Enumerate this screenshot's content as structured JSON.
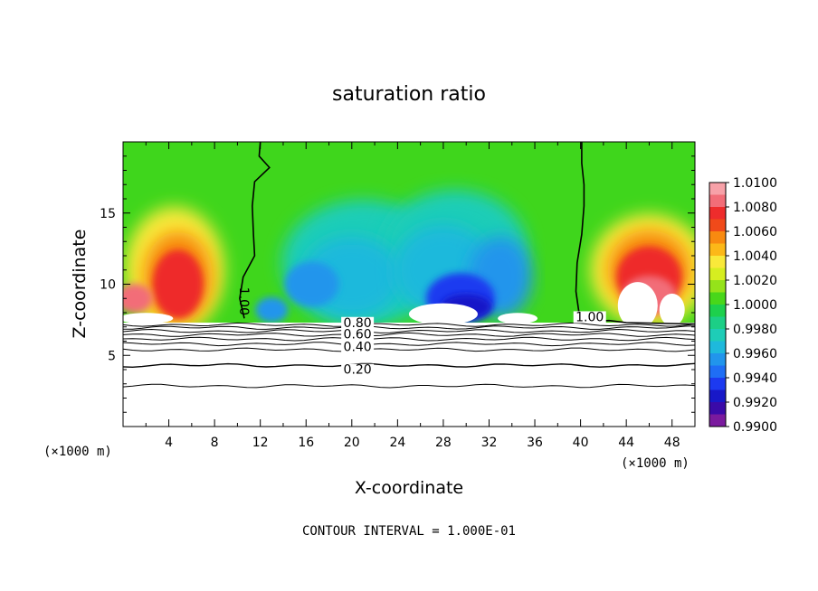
{
  "chart_data": {
    "type": "heatmap",
    "title": "saturation ratio",
    "xlabel": "X-coordinate",
    "ylabel": "Z-coordinate",
    "x_unit_left": "(×1000 m)",
    "x_unit_right": "(×1000 m)",
    "footer": "CONTOUR INTERVAL = 1.000E-01",
    "xlim": [
      0,
      50
    ],
    "ylim": [
      0,
      20
    ],
    "x_ticks": [
      4,
      8,
      12,
      16,
      20,
      24,
      28,
      32,
      36,
      40,
      44,
      48
    ],
    "y_ticks": [
      5,
      10,
      15
    ],
    "colorbar": {
      "levels": [
        "1.0100",
        "1.0080",
        "1.0060",
        "1.0040",
        "1.0020",
        "1.0000",
        "0.9980",
        "0.9960",
        "0.9940",
        "0.9920",
        "0.9900"
      ],
      "colors": [
        "#f7a1a8",
        "#f26d78",
        "#ee2c2c",
        "#f04a1a",
        "#f88a10",
        "#fcb818",
        "#f9e93a",
        "#d6ee20",
        "#95e31a",
        "#48d71a",
        "#1dd04c",
        "#1ccf86",
        "#1ecdb7",
        "#1eb9dc",
        "#2195ec",
        "#1f6ef5",
        "#1c3af0",
        "#1818c8",
        "#3a0aa8",
        "#7a1a9e"
      ]
    },
    "contour_labels": [
      {
        "text": "1.00",
        "x": 10.2,
        "y": 8.8,
        "rotate": 90
      },
      {
        "text": "1.00",
        "x": 40.8,
        "y": 7.4,
        "rotate": 0
      },
      {
        "text": "0.80",
        "x": 20.5,
        "y": 7.0,
        "rotate": 0
      },
      {
        "text": "0.60",
        "x": 20.5,
        "y": 6.2,
        "rotate": 0
      },
      {
        "text": "0.40",
        "x": 20.5,
        "y": 5.3,
        "rotate": 0
      },
      {
        "text": "0.20",
        "x": 20.5,
        "y": 3.7,
        "rotate": 0
      }
    ],
    "contour_lines": [
      {
        "level": 0.9,
        "z": 7.15
      },
      {
        "level": 0.8,
        "z": 6.95
      },
      {
        "level": 0.7,
        "z": 6.7
      },
      {
        "level": 0.6,
        "z": 6.45
      },
      {
        "level": 0.5,
        "z": 6.15
      },
      {
        "level": 0.4,
        "z": 5.8
      },
      {
        "level": 0.3,
        "z": 5.4
      },
      {
        "level": 0.2,
        "z": 4.3
      },
      {
        "level": 0.1,
        "z": 2.85
      }
    ],
    "cloud_base_z": 7.3
  }
}
